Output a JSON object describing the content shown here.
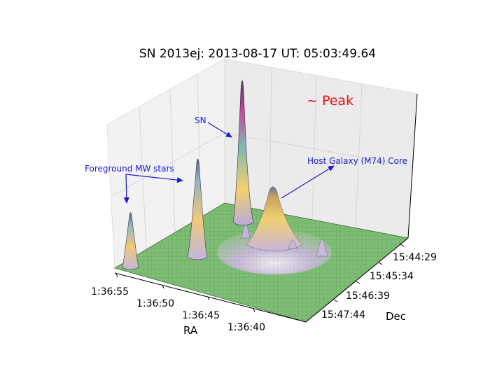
{
  "chart_data": {
    "type": "surface",
    "title": "SN 2013ej: 2013-08-17  UT: 05:03:49.64",
    "xlabel": "RA",
    "ylabel": "Dec",
    "x_ticks": [
      "1:36:55",
      "1:36:50",
      "1:36:45",
      "1:36:40"
    ],
    "y_ticks": [
      "15:47:44",
      "15:46:39",
      "15:45:34",
      "15:44:29"
    ],
    "annotations": [
      {
        "id": "peak",
        "text": "~ Peak"
      },
      {
        "id": "sn",
        "text": "SN"
      },
      {
        "id": "stars",
        "text": "Foreground MW stars"
      },
      {
        "id": "host",
        "text": "Host Galaxy (M74) Core"
      }
    ],
    "peaks": [
      {
        "name": "SN",
        "ra": "1:36:48.7",
        "dec": "15:45:44",
        "height": 1.0
      },
      {
        "name": "Foreground MW star 1",
        "ra": "1:36:54.5",
        "dec": "15:47:40",
        "height": 0.28
      },
      {
        "name": "Foreground MW star 2",
        "ra": "1:36:50.3",
        "dec": "15:46:35",
        "height": 0.6
      },
      {
        "name": "Host Galaxy (M74) Core",
        "ra": "1:36:42.7",
        "dec": "15:46:50",
        "height": 0.42
      }
    ],
    "colors": {
      "surface_base": "#7dbd74",
      "surface_mid": "#f2d06e",
      "surface_high": "#c8439a",
      "galaxy_base": "#cbb8dc",
      "annotation": "#1a1acc",
      "peak_label": "#e8110e"
    },
    "grid": true
  }
}
